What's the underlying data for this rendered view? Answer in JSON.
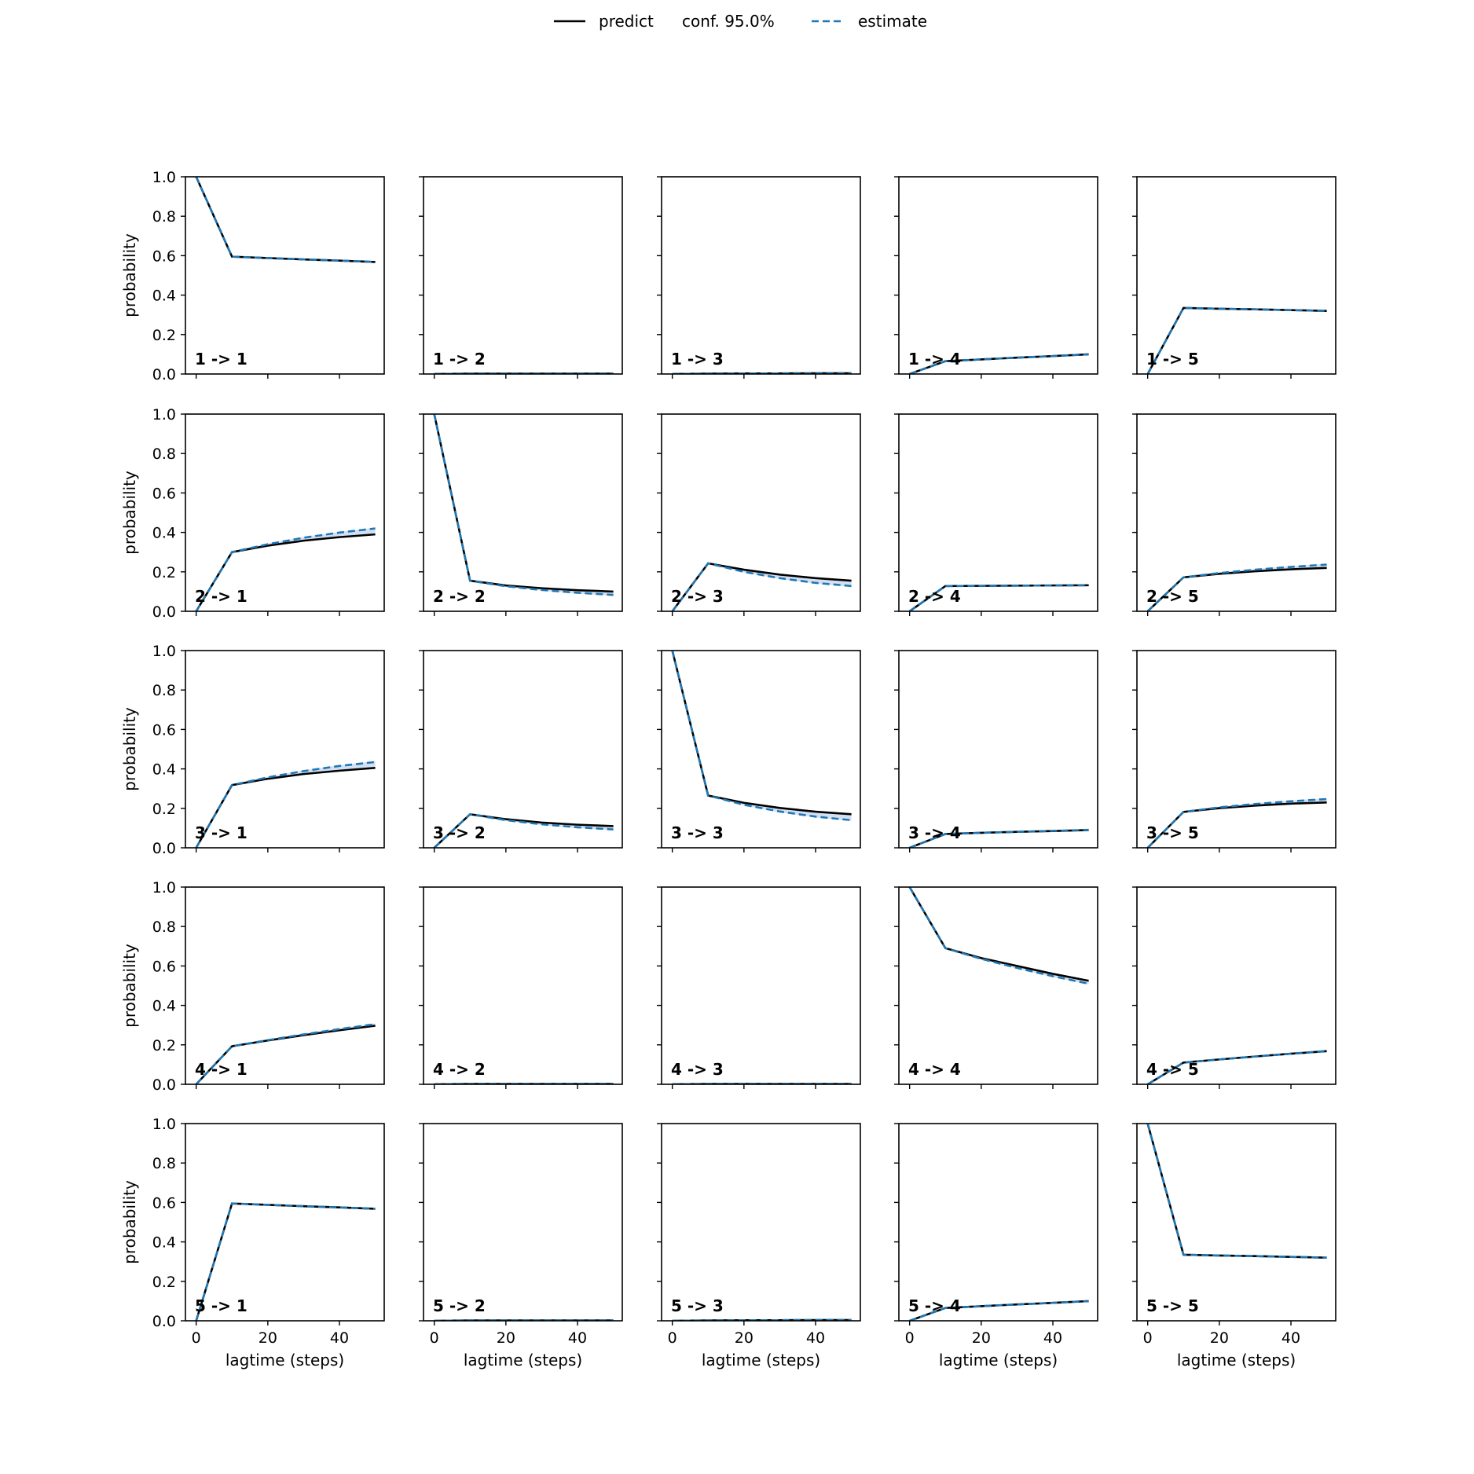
{
  "chart_data": {
    "type": "line",
    "grid": false,
    "legend": {
      "placement": "top-center",
      "entries": [
        {
          "label": "predict",
          "style": "solid",
          "color": "#000000"
        },
        {
          "label": "conf. 95.0%",
          "style": "none",
          "color": ""
        },
        {
          "label": "estimate",
          "style": "dashed",
          "color": "#1f77b4"
        }
      ]
    },
    "colors": {
      "predict": "#000000",
      "estimate": "#1f77b4",
      "confidence_band": "#aec7e8"
    },
    "xlabel": "lagtime (steps)",
    "ylabel": "probability",
    "xlim": [
      -3,
      52.5
    ],
    "ylim": [
      0,
      1
    ],
    "xticks": [
      0,
      20,
      40
    ],
    "yticks": [
      0.0,
      0.2,
      0.4,
      0.6,
      0.8,
      1.0
    ],
    "x": [
      0,
      10,
      20,
      30,
      40,
      50
    ],
    "rows": 5,
    "cols": 5,
    "panels": [
      {
        "title": "1 -> 1",
        "predict": [
          1.0,
          0.595,
          0.588,
          0.581,
          0.575,
          0.568
        ],
        "estimate": [
          1.0,
          0.595,
          0.588,
          0.581,
          0.575,
          0.568
        ]
      },
      {
        "title": "1 -> 2",
        "predict": [
          0.0,
          0.002,
          0.002,
          0.002,
          0.002,
          0.002
        ],
        "estimate": [
          0.0,
          0.002,
          0.002,
          0.002,
          0.002,
          0.002
        ]
      },
      {
        "title": "1 -> 3",
        "predict": [
          0.0,
          0.002,
          0.003,
          0.003,
          0.004,
          0.004
        ],
        "estimate": [
          0.0,
          0.002,
          0.003,
          0.003,
          0.004,
          0.004
        ]
      },
      {
        "title": "1 -> 4",
        "predict": [
          0.0,
          0.065,
          0.074,
          0.083,
          0.091,
          0.1
        ],
        "estimate": [
          0.0,
          0.065,
          0.074,
          0.083,
          0.091,
          0.1
        ]
      },
      {
        "title": "1 -> 5",
        "predict": [
          0.0,
          0.335,
          0.331,
          0.328,
          0.324,
          0.32
        ],
        "estimate": [
          0.0,
          0.335,
          0.331,
          0.328,
          0.324,
          0.32
        ]
      },
      {
        "title": "2 -> 1",
        "predict": [
          0.0,
          0.3,
          0.333,
          0.358,
          0.376,
          0.39
        ],
        "estimate": [
          0.0,
          0.3,
          0.34,
          0.373,
          0.399,
          0.42
        ]
      },
      {
        "title": "2 -> 2",
        "predict": [
          1.0,
          0.155,
          0.131,
          0.117,
          0.107,
          0.1
        ],
        "estimate": [
          1.0,
          0.155,
          0.127,
          0.108,
          0.094,
          0.083
        ]
      },
      {
        "title": "2 -> 3",
        "predict": [
          0.0,
          0.243,
          0.211,
          0.186,
          0.168,
          0.155
        ],
        "estimate": [
          0.0,
          0.243,
          0.2,
          0.168,
          0.144,
          0.128
        ]
      },
      {
        "title": "2 -> 4",
        "predict": [
          0.0,
          0.128,
          0.129,
          0.13,
          0.131,
          0.132
        ],
        "estimate": [
          0.0,
          0.128,
          0.129,
          0.13,
          0.131,
          0.132
        ]
      },
      {
        "title": "2 -> 5",
        "predict": [
          0.0,
          0.172,
          0.19,
          0.203,
          0.213,
          0.22
        ],
        "estimate": [
          0.0,
          0.172,
          0.194,
          0.211,
          0.225,
          0.237
        ]
      },
      {
        "title": "3 -> 1",
        "predict": [
          0.0,
          0.318,
          0.35,
          0.374,
          0.391,
          0.405
        ],
        "estimate": [
          0.0,
          0.318,
          0.357,
          0.389,
          0.415,
          0.435
        ]
      },
      {
        "title": "3 -> 2",
        "predict": [
          0.0,
          0.17,
          0.145,
          0.128,
          0.117,
          0.11
        ],
        "estimate": [
          0.0,
          0.17,
          0.14,
          0.119,
          0.104,
          0.093
        ]
      },
      {
        "title": "3 -> 3",
        "predict": [
          1.0,
          0.265,
          0.228,
          0.202,
          0.183,
          0.17
        ],
        "estimate": [
          1.0,
          0.265,
          0.218,
          0.184,
          0.158,
          0.14
        ]
      },
      {
        "title": "3 -> 4",
        "predict": [
          0.0,
          0.07,
          0.076,
          0.081,
          0.085,
          0.09
        ],
        "estimate": [
          0.0,
          0.07,
          0.076,
          0.081,
          0.086,
          0.091
        ]
      },
      {
        "title": "3 -> 5",
        "predict": [
          0.0,
          0.182,
          0.201,
          0.214,
          0.224,
          0.23
        ],
        "estimate": [
          0.0,
          0.182,
          0.205,
          0.222,
          0.236,
          0.247
        ]
      },
      {
        "title": "4 -> 1",
        "predict": [
          0.0,
          0.193,
          0.222,
          0.249,
          0.274,
          0.297
        ],
        "estimate": [
          0.0,
          0.193,
          0.224,
          0.253,
          0.28,
          0.305
        ]
      },
      {
        "title": "4 -> 2",
        "predict": [
          0.0,
          0.002,
          0.002,
          0.002,
          0.002,
          0.002
        ],
        "estimate": [
          0.0,
          0.002,
          0.002,
          0.002,
          0.002,
          0.002
        ]
      },
      {
        "title": "4 -> 3",
        "predict": [
          0.0,
          0.002,
          0.002,
          0.002,
          0.002,
          0.002
        ],
        "estimate": [
          0.0,
          0.002,
          0.002,
          0.002,
          0.002,
          0.002
        ]
      },
      {
        "title": "4 -> 4",
        "predict": [
          1.0,
          0.69,
          0.64,
          0.6,
          0.56,
          0.525
        ],
        "estimate": [
          1.0,
          0.69,
          0.636,
          0.59,
          0.548,
          0.51
        ]
      },
      {
        "title": "4 -> 5",
        "predict": [
          0.0,
          0.11,
          0.126,
          0.141,
          0.155,
          0.168
        ],
        "estimate": [
          0.0,
          0.11,
          0.126,
          0.141,
          0.155,
          0.169
        ]
      },
      {
        "title": "5 -> 1",
        "predict": [
          0.0,
          0.595,
          0.588,
          0.581,
          0.575,
          0.568
        ],
        "estimate": [
          0.0,
          0.595,
          0.588,
          0.581,
          0.575,
          0.568
        ]
      },
      {
        "title": "5 -> 2",
        "predict": [
          0.0,
          0.002,
          0.002,
          0.002,
          0.002,
          0.002
        ],
        "estimate": [
          0.0,
          0.002,
          0.002,
          0.002,
          0.002,
          0.002
        ]
      },
      {
        "title": "5 -> 3",
        "predict": [
          0.0,
          0.002,
          0.003,
          0.003,
          0.004,
          0.004
        ],
        "estimate": [
          0.0,
          0.002,
          0.003,
          0.003,
          0.004,
          0.004
        ]
      },
      {
        "title": "5 -> 4",
        "predict": [
          0.0,
          0.065,
          0.074,
          0.083,
          0.091,
          0.1
        ],
        "estimate": [
          0.0,
          0.065,
          0.074,
          0.083,
          0.091,
          0.1
        ]
      },
      {
        "title": "5 -> 5",
        "predict": [
          1.0,
          0.335,
          0.331,
          0.328,
          0.324,
          0.32
        ],
        "estimate": [
          1.0,
          0.335,
          0.331,
          0.328,
          0.324,
          0.32
        ]
      }
    ]
  }
}
